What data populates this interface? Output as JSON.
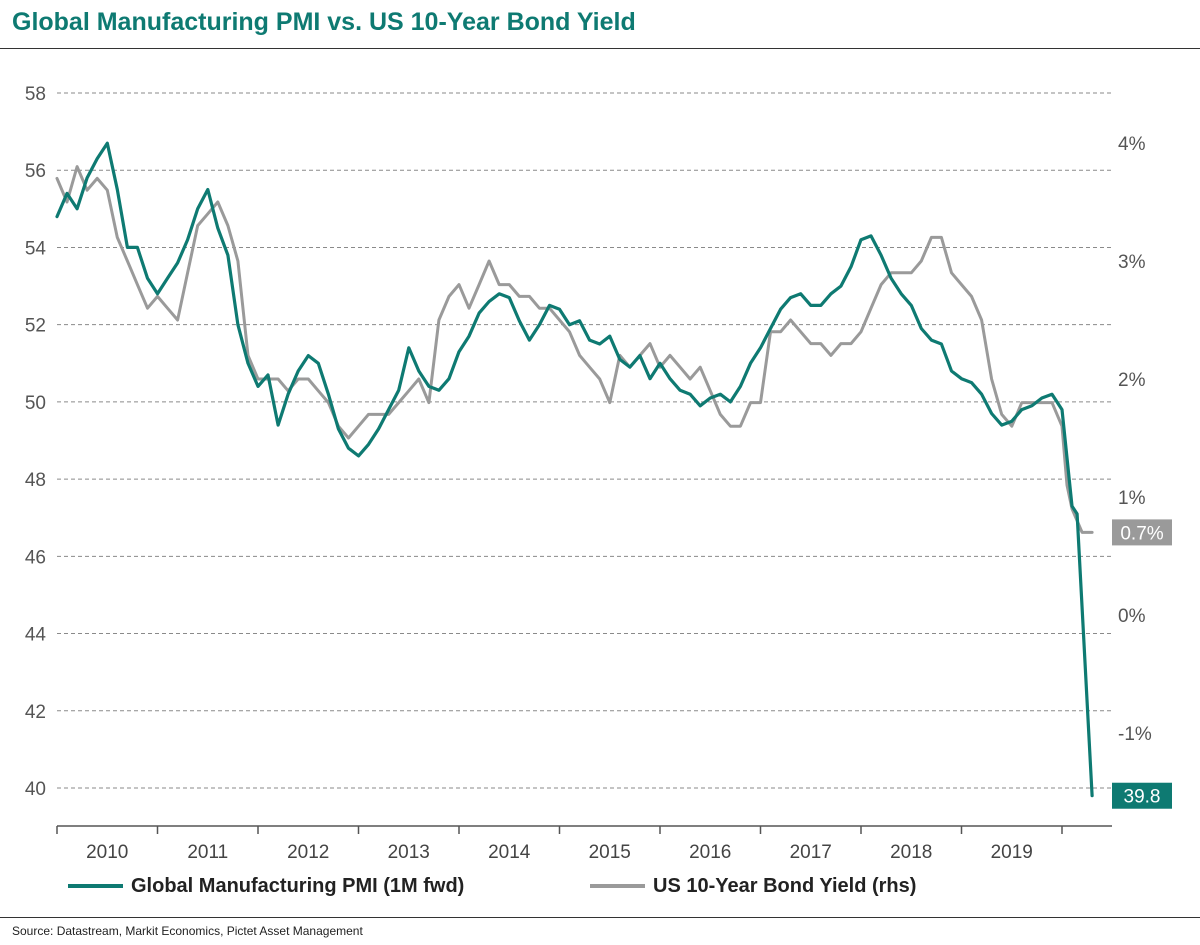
{
  "title": "Global Manufacturing PMI vs. US 10-Year Bond Yield",
  "source": "Source: Datastream, Markit Economics, Pictet Asset Management",
  "colors": {
    "pmi": "#0e7a72",
    "yield": "#9a9a9a",
    "grid": "#8a8a8a",
    "title": "#0e7a72"
  },
  "chart_data": {
    "type": "line",
    "title": "Global Manufacturing PMI vs. US 10-Year Bond Yield",
    "x_axis": {
      "type": "time",
      "range": [
        2009.5,
        2020.4
      ],
      "tick_labels": [
        "2010",
        "2011",
        "2012",
        "2013",
        "2014",
        "2015",
        "2016",
        "2017",
        "2018",
        "2019"
      ]
    },
    "y_axis_left": {
      "range": [
        39,
        59
      ],
      "ticks": [
        40,
        42,
        44,
        46,
        48,
        50,
        52,
        54,
        56,
        58
      ],
      "tick_labels": [
        "40",
        "42",
        "44",
        "46",
        "48",
        "50",
        "52",
        "54",
        "56",
        "58"
      ]
    },
    "y_axis_right": {
      "range": [
        -2,
        5
      ],
      "ticks": [
        -1,
        0,
        1,
        2,
        3,
        4
      ],
      "tick_labels": [
        "-1%",
        "0%",
        "1%",
        "2%",
        "3%",
        "4%"
      ]
    },
    "grid": true,
    "grid_style": "dashed horizontal",
    "legend_position": "bottom",
    "series": [
      {
        "name": "Global Manufacturing PMI (1M fwd)",
        "axis": "left",
        "color": "#0e7a72",
        "end_label": "39.8",
        "points": [
          [
            2009.5,
            54.8
          ],
          [
            2009.6,
            55.4
          ],
          [
            2009.7,
            55.0
          ],
          [
            2009.8,
            55.8
          ],
          [
            2009.9,
            56.3
          ],
          [
            2010.0,
            56.7
          ],
          [
            2010.1,
            55.5
          ],
          [
            2010.2,
            54.0
          ],
          [
            2010.3,
            54.0
          ],
          [
            2010.4,
            53.2
          ],
          [
            2010.5,
            52.8
          ],
          [
            2010.6,
            53.2
          ],
          [
            2010.7,
            53.6
          ],
          [
            2010.8,
            54.2
          ],
          [
            2010.9,
            55.0
          ],
          [
            2011.0,
            55.5
          ],
          [
            2011.1,
            54.5
          ],
          [
            2011.2,
            53.8
          ],
          [
            2011.3,
            52.0
          ],
          [
            2011.4,
            51.0
          ],
          [
            2011.5,
            50.4
          ],
          [
            2011.6,
            50.7
          ],
          [
            2011.7,
            49.4
          ],
          [
            2011.8,
            50.2
          ],
          [
            2011.9,
            50.8
          ],
          [
            2012.0,
            51.2
          ],
          [
            2012.1,
            51.0
          ],
          [
            2012.2,
            50.2
          ],
          [
            2012.3,
            49.3
          ],
          [
            2012.4,
            48.8
          ],
          [
            2012.5,
            48.6
          ],
          [
            2012.6,
            48.9
          ],
          [
            2012.7,
            49.3
          ],
          [
            2012.8,
            49.8
          ],
          [
            2012.9,
            50.3
          ],
          [
            2013.0,
            51.4
          ],
          [
            2013.1,
            50.8
          ],
          [
            2013.2,
            50.4
          ],
          [
            2013.3,
            50.3
          ],
          [
            2013.4,
            50.6
          ],
          [
            2013.5,
            51.3
          ],
          [
            2013.6,
            51.7
          ],
          [
            2013.7,
            52.3
          ],
          [
            2013.8,
            52.6
          ],
          [
            2013.9,
            52.8
          ],
          [
            2014.0,
            52.7
          ],
          [
            2014.1,
            52.1
          ],
          [
            2014.2,
            51.6
          ],
          [
            2014.3,
            52.0
          ],
          [
            2014.4,
            52.5
          ],
          [
            2014.5,
            52.4
          ],
          [
            2014.6,
            52.0
          ],
          [
            2014.7,
            52.1
          ],
          [
            2014.8,
            51.6
          ],
          [
            2014.9,
            51.5
          ],
          [
            2015.0,
            51.7
          ],
          [
            2015.1,
            51.1
          ],
          [
            2015.2,
            50.9
          ],
          [
            2015.3,
            51.2
          ],
          [
            2015.4,
            50.6
          ],
          [
            2015.5,
            51.0
          ],
          [
            2015.6,
            50.6
          ],
          [
            2015.7,
            50.3
          ],
          [
            2015.8,
            50.2
          ],
          [
            2015.9,
            49.9
          ],
          [
            2016.0,
            50.1
          ],
          [
            2016.1,
            50.2
          ],
          [
            2016.2,
            50.0
          ],
          [
            2016.3,
            50.4
          ],
          [
            2016.4,
            51.0
          ],
          [
            2016.5,
            51.4
          ],
          [
            2016.6,
            51.9
          ],
          [
            2016.7,
            52.4
          ],
          [
            2016.8,
            52.7
          ],
          [
            2016.9,
            52.8
          ],
          [
            2017.0,
            52.5
          ],
          [
            2017.1,
            52.5
          ],
          [
            2017.2,
            52.8
          ],
          [
            2017.3,
            53.0
          ],
          [
            2017.4,
            53.5
          ],
          [
            2017.5,
            54.2
          ],
          [
            2017.6,
            54.3
          ],
          [
            2017.7,
            53.8
          ],
          [
            2017.8,
            53.2
          ],
          [
            2017.9,
            52.8
          ],
          [
            2018.0,
            52.5
          ],
          [
            2018.1,
            51.9
          ],
          [
            2018.2,
            51.6
          ],
          [
            2018.3,
            51.5
          ],
          [
            2018.4,
            50.8
          ],
          [
            2018.5,
            50.6
          ],
          [
            2018.6,
            50.5
          ],
          [
            2018.7,
            50.2
          ],
          [
            2018.8,
            49.7
          ],
          [
            2018.9,
            49.4
          ],
          [
            2019.0,
            49.5
          ],
          [
            2019.1,
            49.8
          ],
          [
            2019.2,
            49.9
          ],
          [
            2019.3,
            50.1
          ],
          [
            2019.4,
            50.2
          ],
          [
            2019.5,
            49.8
          ],
          [
            2019.6,
            47.3
          ],
          [
            2019.65,
            47.1
          ],
          [
            2019.8,
            39.8
          ]
        ]
      },
      {
        "name": "US 10-Year Bond Yield (rhs)",
        "axis": "right",
        "color": "#9a9a9a",
        "end_label": "0.7%",
        "points": [
          [
            2009.5,
            3.7
          ],
          [
            2009.6,
            3.5
          ],
          [
            2009.7,
            3.8
          ],
          [
            2009.8,
            3.6
          ],
          [
            2009.9,
            3.7
          ],
          [
            2010.0,
            3.6
          ],
          [
            2010.1,
            3.2
          ],
          [
            2010.2,
            3.0
          ],
          [
            2010.3,
            2.8
          ],
          [
            2010.4,
            2.6
          ],
          [
            2010.5,
            2.7
          ],
          [
            2010.6,
            2.6
          ],
          [
            2010.7,
            2.5
          ],
          [
            2010.8,
            2.9
          ],
          [
            2010.9,
            3.3
          ],
          [
            2011.0,
            3.4
          ],
          [
            2011.1,
            3.5
          ],
          [
            2011.2,
            3.3
          ],
          [
            2011.3,
            3.0
          ],
          [
            2011.4,
            2.2
          ],
          [
            2011.5,
            2.0
          ],
          [
            2011.6,
            2.0
          ],
          [
            2011.7,
            2.0
          ],
          [
            2011.8,
            1.9
          ],
          [
            2011.9,
            2.0
          ],
          [
            2012.0,
            2.0
          ],
          [
            2012.1,
            1.9
          ],
          [
            2012.2,
            1.8
          ],
          [
            2012.3,
            1.6
          ],
          [
            2012.4,
            1.5
          ],
          [
            2012.5,
            1.6
          ],
          [
            2012.6,
            1.7
          ],
          [
            2012.7,
            1.7
          ],
          [
            2012.8,
            1.7
          ],
          [
            2012.9,
            1.8
          ],
          [
            2013.0,
            1.9
          ],
          [
            2013.1,
            2.0
          ],
          [
            2013.2,
            1.8
          ],
          [
            2013.3,
            2.5
          ],
          [
            2013.4,
            2.7
          ],
          [
            2013.5,
            2.8
          ],
          [
            2013.6,
            2.6
          ],
          [
            2013.7,
            2.8
          ],
          [
            2013.8,
            3.0
          ],
          [
            2013.9,
            2.8
          ],
          [
            2014.0,
            2.8
          ],
          [
            2014.1,
            2.7
          ],
          [
            2014.2,
            2.7
          ],
          [
            2014.3,
            2.6
          ],
          [
            2014.4,
            2.6
          ],
          [
            2014.5,
            2.5
          ],
          [
            2014.6,
            2.4
          ],
          [
            2014.7,
            2.2
          ],
          [
            2014.8,
            2.1
          ],
          [
            2014.9,
            2.0
          ],
          [
            2015.0,
            1.8
          ],
          [
            2015.1,
            2.2
          ],
          [
            2015.2,
            2.1
          ],
          [
            2015.3,
            2.2
          ],
          [
            2015.4,
            2.3
          ],
          [
            2015.5,
            2.1
          ],
          [
            2015.6,
            2.2
          ],
          [
            2015.7,
            2.1
          ],
          [
            2015.8,
            2.0
          ],
          [
            2015.9,
            2.1
          ],
          [
            2016.0,
            1.9
          ],
          [
            2016.1,
            1.7
          ],
          [
            2016.2,
            1.6
          ],
          [
            2016.3,
            1.6
          ],
          [
            2016.4,
            1.8
          ],
          [
            2016.5,
            1.8
          ],
          [
            2016.6,
            2.4
          ],
          [
            2016.7,
            2.4
          ],
          [
            2016.8,
            2.5
          ],
          [
            2016.9,
            2.4
          ],
          [
            2017.0,
            2.3
          ],
          [
            2017.1,
            2.3
          ],
          [
            2017.2,
            2.2
          ],
          [
            2017.3,
            2.3
          ],
          [
            2017.4,
            2.3
          ],
          [
            2017.5,
            2.4
          ],
          [
            2017.6,
            2.6
          ],
          [
            2017.7,
            2.8
          ],
          [
            2017.8,
            2.9
          ],
          [
            2017.9,
            2.9
          ],
          [
            2018.0,
            2.9
          ],
          [
            2018.1,
            3.0
          ],
          [
            2018.2,
            3.2
          ],
          [
            2018.3,
            3.2
          ],
          [
            2018.4,
            2.9
          ],
          [
            2018.5,
            2.8
          ],
          [
            2018.6,
            2.7
          ],
          [
            2018.7,
            2.5
          ],
          [
            2018.8,
            2.0
          ],
          [
            2018.9,
            1.7
          ],
          [
            2019.0,
            1.6
          ],
          [
            2019.1,
            1.8
          ],
          [
            2019.2,
            1.8
          ],
          [
            2019.3,
            1.8
          ],
          [
            2019.4,
            1.8
          ],
          [
            2019.5,
            1.6
          ],
          [
            2019.55,
            1.1
          ],
          [
            2019.6,
            0.9
          ],
          [
            2019.7,
            0.7
          ],
          [
            2019.8,
            0.7
          ]
        ]
      }
    ]
  }
}
